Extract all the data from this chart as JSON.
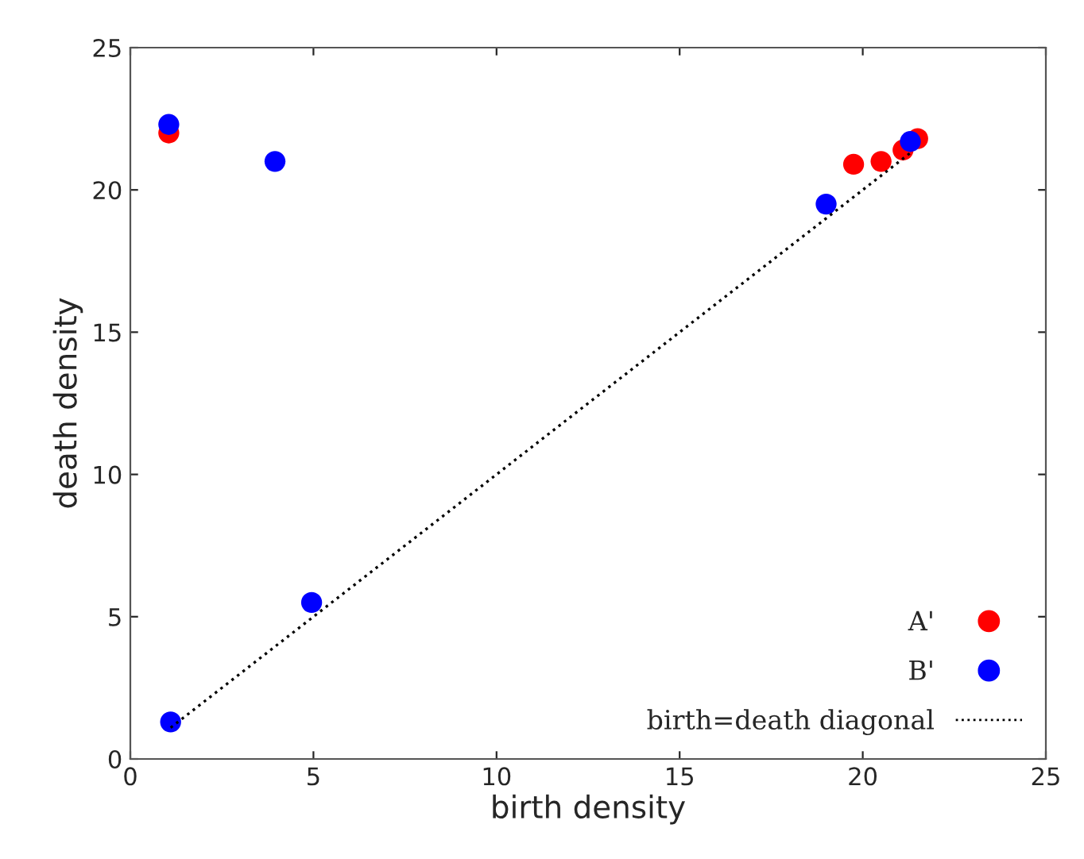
{
  "chart_data": {
    "type": "scatter",
    "xlabel": "birth density",
    "ylabel": "death density",
    "xlim": [
      0,
      25
    ],
    "ylim": [
      0,
      25
    ],
    "xticks": [
      0,
      5,
      10,
      15,
      20,
      25
    ],
    "yticks": [
      0,
      5,
      10,
      15,
      20,
      25
    ],
    "grid": false,
    "legend": "bottom right",
    "series": [
      {
        "name": "A'",
        "marker": "circle",
        "color": "#ff0000",
        "x": [
          1.05,
          19.75,
          20.5,
          21.1,
          21.5
        ],
        "values": [
          22.0,
          20.9,
          21.0,
          21.4,
          21.8
        ]
      },
      {
        "name": "B'",
        "marker": "circle",
        "color": "#0000ff",
        "x": [
          1.05,
          3.95,
          19.0,
          21.3,
          4.95,
          1.1
        ],
        "values": [
          22.3,
          21.0,
          19.5,
          21.7,
          5.5,
          1.3
        ]
      },
      {
        "name": "birth=death diagonal",
        "type": "line",
        "marker": "none",
        "line_style": "dotted",
        "color": "#000000",
        "x": [
          1.1,
          21.3
        ],
        "values": [
          1.1,
          21.3
        ]
      }
    ]
  }
}
